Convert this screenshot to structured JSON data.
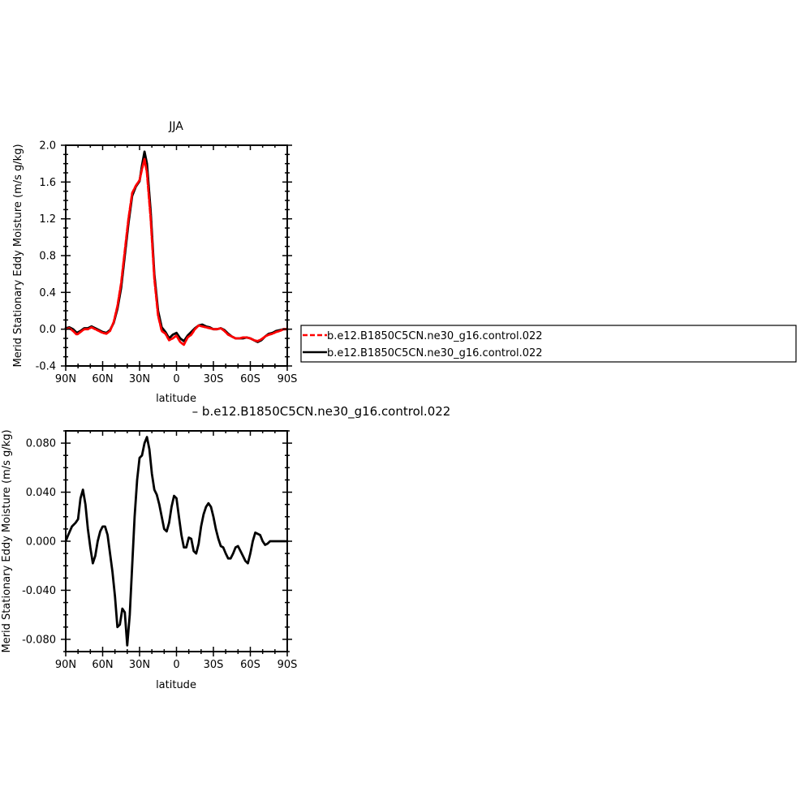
{
  "chart_data": [
    {
      "type": "line",
      "title": "JJA",
      "xlabel": "latitude",
      "ylabel": "Merid Stationary Eddy Moisture (m/s g/kg)",
      "xlim": [
        90,
        -90
      ],
      "ylim": [
        -0.4,
        2.0
      ],
      "x_ticks": [
        90,
        60,
        30,
        0,
        -30,
        -60,
        -90
      ],
      "x_tick_labels": [
        "90N",
        "60N",
        "30N",
        "0",
        "30S",
        "60S",
        "90S"
      ],
      "y_ticks": [
        -0.4,
        0.0,
        0.4,
        0.8,
        1.2,
        1.6,
        2.0
      ],
      "y_tick_labels": [
        "-0.4",
        "0.0",
        "0.4",
        "0.8",
        "1.2",
        "1.6",
        "2.0"
      ],
      "legend_position": "right",
      "series": [
        {
          "name": "b.e12.B1850C5CN.ne30_g16.control.022",
          "color": "#ff0000",
          "dash": "dashed",
          "x": [
            90,
            87,
            84,
            81,
            78,
            75,
            72,
            69,
            66,
            63,
            60,
            57,
            54,
            51,
            48,
            45,
            42,
            39,
            36,
            33,
            30,
            28,
            26,
            24,
            21,
            18,
            15,
            12,
            9,
            6,
            3,
            0,
            -3,
            -6,
            -9,
            -12,
            -15,
            -18,
            -21,
            -24,
            -27,
            -30,
            -33,
            -36,
            -39,
            -42,
            -45,
            -48,
            -51,
            -54,
            -57,
            -60,
            -63,
            -66,
            -69,
            -72,
            -75,
            -78,
            -81,
            -84,
            -87,
            -90
          ],
          "y": [
            0.0,
            0.01,
            -0.02,
            -0.06,
            -0.03,
            0.0,
            0.0,
            0.02,
            0.0,
            -0.02,
            -0.04,
            -0.05,
            -0.02,
            0.08,
            0.25,
            0.5,
            0.85,
            1.2,
            1.48,
            1.56,
            1.62,
            1.74,
            1.85,
            1.7,
            1.2,
            0.55,
            0.15,
            -0.02,
            -0.05,
            -0.12,
            -0.1,
            -0.07,
            -0.14,
            -0.17,
            -0.09,
            -0.06,
            0.0,
            0.04,
            0.03,
            0.02,
            0.01,
            0.0,
            0.0,
            0.01,
            -0.02,
            -0.06,
            -0.08,
            -0.1,
            -0.1,
            -0.09,
            -0.09,
            -0.1,
            -0.12,
            -0.13,
            -0.11,
            -0.08,
            -0.06,
            -0.05,
            -0.03,
            -0.02,
            0.0,
            0.0
          ]
        },
        {
          "name": "b.e12.B1850C5CN.ne30_g16.control.022",
          "color": "#000000",
          "dash": "solid",
          "x": [
            90,
            87,
            84,
            81,
            78,
            75,
            72,
            69,
            66,
            63,
            60,
            57,
            54,
            51,
            48,
            45,
            42,
            39,
            36,
            33,
            30,
            28,
            26,
            24,
            21,
            18,
            15,
            12,
            9,
            6,
            3,
            0,
            -3,
            -6,
            -9,
            -12,
            -15,
            -18,
            -21,
            -24,
            -27,
            -30,
            -33,
            -36,
            -39,
            -42,
            -45,
            -48,
            -51,
            -54,
            -57,
            -60,
            -63,
            -66,
            -69,
            -72,
            -75,
            -78,
            -81,
            -84,
            -87,
            -90
          ],
          "y": [
            0.01,
            0.02,
            0.0,
            -0.04,
            -0.02,
            0.01,
            0.01,
            0.03,
            0.01,
            -0.01,
            -0.03,
            -0.04,
            -0.01,
            0.07,
            0.22,
            0.45,
            0.8,
            1.15,
            1.45,
            1.55,
            1.61,
            1.78,
            1.93,
            1.8,
            1.28,
            0.6,
            0.2,
            0.02,
            -0.03,
            -0.1,
            -0.06,
            -0.04,
            -0.1,
            -0.13,
            -0.07,
            -0.03,
            0.01,
            0.04,
            0.05,
            0.03,
            0.02,
            0.0,
            0.0,
            0.01,
            -0.01,
            -0.05,
            -0.08,
            -0.1,
            -0.1,
            -0.1,
            -0.09,
            -0.1,
            -0.12,
            -0.14,
            -0.12,
            -0.08,
            -0.05,
            -0.04,
            -0.02,
            -0.01,
            0.0,
            0.0
          ]
        }
      ]
    },
    {
      "type": "line",
      "title": "– b.e12.B1850C5CN.ne30_g16.control.022",
      "xlabel": "latitude",
      "ylabel": "Merid Stationary Eddy Moisture (m/s g/kg)",
      "xlim": [
        90,
        -90
      ],
      "ylim": [
        -0.09,
        0.09
      ],
      "x_ticks": [
        90,
        60,
        30,
        0,
        -30,
        -60,
        -90
      ],
      "x_tick_labels": [
        "90N",
        "60N",
        "30N",
        "0",
        "30S",
        "60S",
        "90S"
      ],
      "y_ticks": [
        -0.08,
        -0.04,
        0.0,
        0.04,
        0.08
      ],
      "y_tick_labels": [
        "-0.080",
        "-0.040",
        "0.000",
        "0.040",
        "0.080"
      ],
      "series": [
        {
          "name": "",
          "color": "#000000",
          "dash": "solid",
          "x": [
            90,
            88,
            85,
            82,
            80,
            78,
            76,
            74,
            72,
            70,
            68,
            66,
            64,
            62,
            60,
            58,
            56,
            54,
            52,
            50,
            48,
            46,
            44,
            42,
            40,
            38,
            36,
            34,
            32,
            30,
            28,
            26,
            24,
            22,
            20,
            18,
            16,
            14,
            12,
            10,
            8,
            6,
            4,
            2,
            0,
            -2,
            -4,
            -6,
            -8,
            -10,
            -12,
            -14,
            -16,
            -18,
            -20,
            -22,
            -24,
            -26,
            -28,
            -30,
            -32,
            -34,
            -36,
            -38,
            -40,
            -42,
            -44,
            -46,
            -48,
            -50,
            -52,
            -54,
            -56,
            -58,
            -60,
            -62,
            -64,
            -66,
            -68,
            -70,
            -72,
            -74,
            -76,
            -78,
            -80,
            -82,
            -84,
            -86,
            -88,
            -90
          ],
          "y": [
            0.0,
            0.005,
            0.012,
            0.015,
            0.018,
            0.035,
            0.042,
            0.03,
            0.01,
            -0.005,
            -0.018,
            -0.012,
            0.0,
            0.008,
            0.012,
            0.012,
            0.005,
            -0.01,
            -0.025,
            -0.045,
            -0.07,
            -0.068,
            -0.055,
            -0.058,
            -0.085,
            -0.06,
            -0.02,
            0.02,
            0.05,
            0.068,
            0.07,
            0.08,
            0.085,
            0.075,
            0.055,
            0.042,
            0.038,
            0.03,
            0.02,
            0.01,
            0.008,
            0.015,
            0.028,
            0.037,
            0.035,
            0.02,
            0.005,
            -0.005,
            -0.005,
            0.003,
            0.002,
            -0.008,
            -0.01,
            -0.002,
            0.012,
            0.022,
            0.028,
            0.031,
            0.028,
            0.02,
            0.01,
            0.002,
            -0.004,
            -0.005,
            -0.01,
            -0.014,
            -0.014,
            -0.01,
            -0.005,
            -0.004,
            -0.008,
            -0.012,
            -0.016,
            -0.018,
            -0.01,
            0.0,
            0.007,
            0.006,
            0.005,
            0.0,
            -0.003,
            -0.002,
            0.0,
            0.0,
            0.0,
            0.0,
            0.0,
            0.0,
            0.0,
            0.0
          ]
        }
      ]
    }
  ]
}
